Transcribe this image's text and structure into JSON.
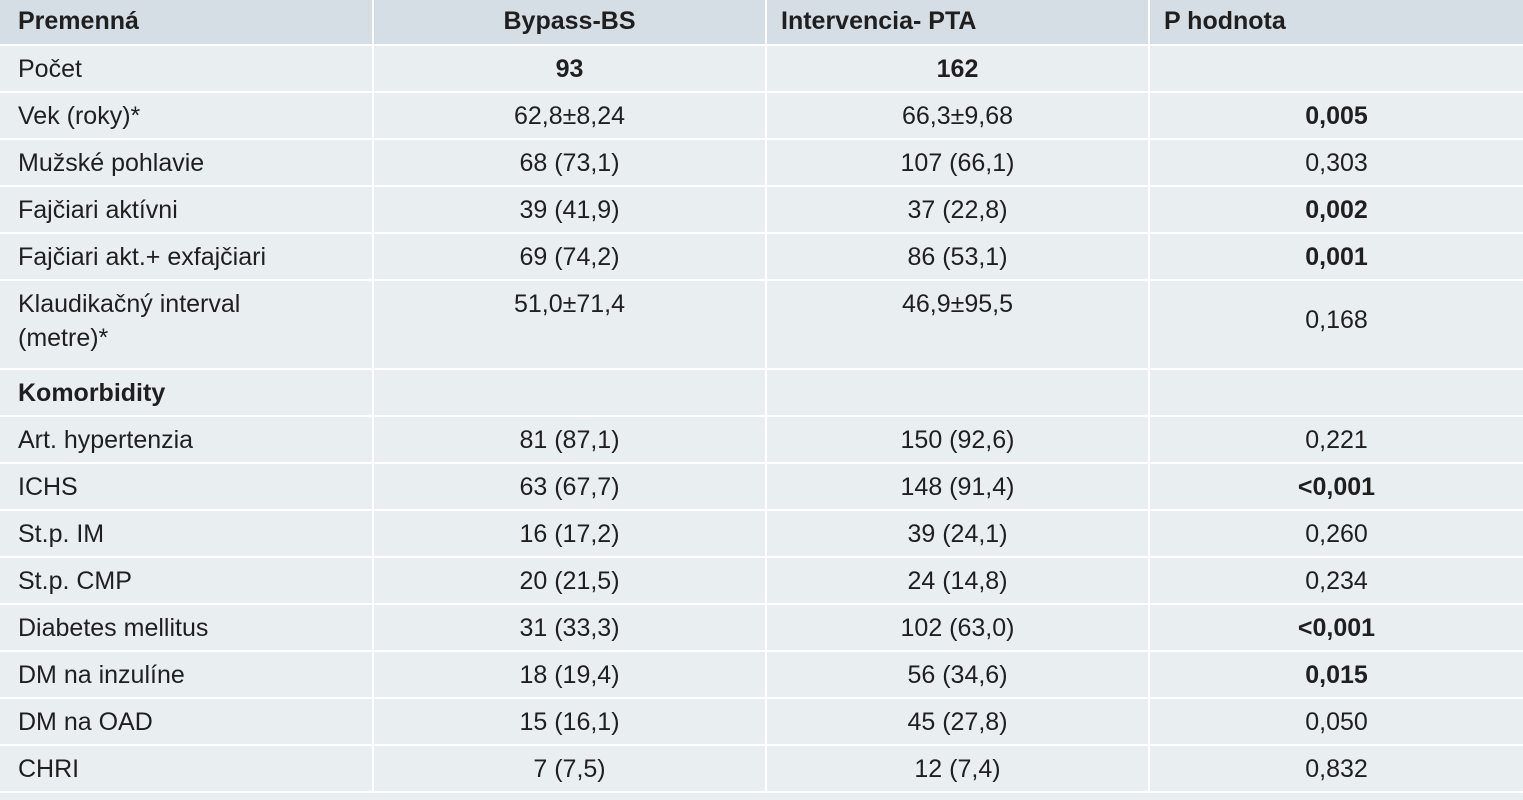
{
  "header": {
    "col0": "Premenná",
    "col1": "Bypass-BS",
    "col2": "Intervencia- PTA",
    "col3": "P hodnota"
  },
  "rows": [
    {
      "label": "Počet",
      "bypass": "93",
      "pta": "162",
      "p": ""
    },
    {
      "label": "Vek (roky)*",
      "bypass": "62,8±8,24",
      "pta": "66,3±9,68",
      "p": "0,005"
    },
    {
      "label": "Mužské pohlavie",
      "bypass": "68 (73,1)",
      "pta": "107 (66,1)",
      "p": "0,303"
    },
    {
      "label": "Fajčiari aktívni",
      "bypass": "39 (41,9)",
      "pta": "37 (22,8)",
      "p": "0,002"
    },
    {
      "label": "Fajčiari akt.+ exfajčiari",
      "bypass": "69 (74,2)",
      "pta": "86 (53,1)",
      "p": "0,001"
    },
    {
      "label_line1": "Klaudikačný interval",
      "label_line2": "(metre)*",
      "bypass": "51,0±71,4",
      "pta": "46,9±95,5",
      "p": "0,168"
    }
  ],
  "section": "Komorbidity",
  "comorbidities": [
    {
      "label": "Art. hypertenzia",
      "bypass": "81 (87,1)",
      "pta": "150 (92,6)",
      "p": "0,221"
    },
    {
      "label": "ICHS",
      "bypass": "63 (67,7)",
      "pta": "148 (91,4)",
      "p": "<0,001"
    },
    {
      "label": "St.p. IM",
      "bypass": "16 (17,2)",
      "pta": "39 (24,1)",
      "p": "0,260"
    },
    {
      "label": "St.p. CMP",
      "bypass": "20 (21,5)",
      "pta": "24 (14,8)",
      "p": "0,234"
    },
    {
      "label": "Diabetes mellitus",
      "bypass": "31 (33,3)",
      "pta": "102 (63,0)",
      "p": "<0,001"
    },
    {
      "label": "DM na inzulíne",
      "bypass": "18 (19,4)",
      "pta": "56 (34,6)",
      "p": "0,015"
    },
    {
      "label": "DM na OAD",
      "bypass": "15 (16,1)",
      "pta": "45 (27,8)",
      "p": "0,050"
    },
    {
      "label": "CHRI",
      "bypass": "7 (7,5)",
      "pta": "12 (7,4)",
      "p": "0,832"
    }
  ],
  "colors": {
    "header_bg": "#d5dee4",
    "row_bg": "#e9eef1",
    "separator": "#ffffff",
    "text": "#1f1f1f"
  }
}
